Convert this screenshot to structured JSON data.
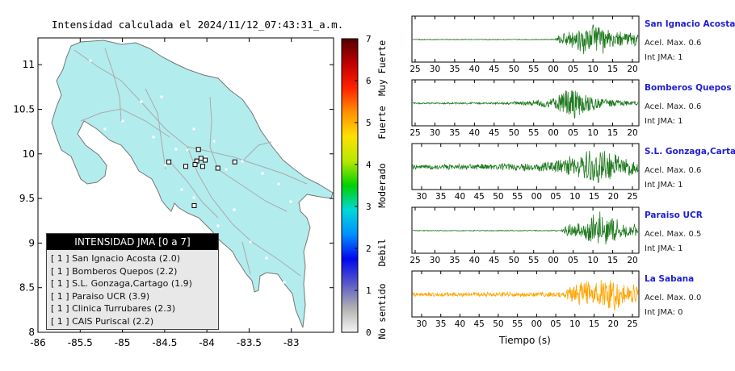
{
  "map": {
    "title": "Intensidad calculada el 2024/11/12_07:43:31_a.m.",
    "colors": {
      "land": "#b3ecec",
      "border": "#777777",
      "roads": "#aaaaaa",
      "station_dots": "#ffffff"
    },
    "legend": {
      "header": "INTENSIDAD JMA [0 a 7]",
      "rows": [
        "[ 1 ]  San Ignacio Acosta (2.0)",
        "[ 1 ]  Bomberos Quepos (2.2)",
        "[ 1 ]  S.L. Gonzaga,Cartago (1.9)",
        "[ 1 ]  Paraiso UCR (3.9)",
        "[ 1 ]  Clinica Turrubares (2.3)",
        "[ 1 ]  CAIS Puriscal (2.2)"
      ]
    }
  },
  "chart_data": [
    {
      "type": "scatter",
      "title": "Intensidad calculada el 2024/11/12_07:43:31_a.m.",
      "xlabel": "",
      "ylabel": "",
      "xlim": [
        -86,
        -82.5
      ],
      "ylim": [
        8,
        11.3
      ],
      "x_ticks": [
        "-86",
        "-85.5",
        "-85",
        "-84.5",
        "-84",
        "-83.5",
        "-83"
      ],
      "y_ticks": [
        "8",
        "8.5",
        "9",
        "9.5",
        "10",
        "10.5",
        "11"
      ],
      "grid": false,
      "series": [
        {
          "marker": "square",
          "points": [
            {
              "x": -84.1,
              "y": 10.05
            },
            {
              "x": -84.07,
              "y": 9.95
            },
            {
              "x": -84.12,
              "y": 9.92
            },
            {
              "x": -84.02,
              "y": 9.93
            },
            {
              "x": -84.45,
              "y": 9.91
            },
            {
              "x": -84.14,
              "y": 9.88
            },
            {
              "x": -84.05,
              "y": 9.86
            },
            {
              "x": -84.25,
              "y": 9.86
            },
            {
              "x": -83.87,
              "y": 9.84
            },
            {
              "x": -83.67,
              "y": 9.91
            },
            {
              "x": -84.15,
              "y": 9.42
            }
          ]
        }
      ]
    },
    {
      "type": "heatmap",
      "title": "",
      "ticks": [
        "0",
        "1",
        "2",
        "3",
        "4",
        "5",
        "6",
        "7"
      ],
      "vmin": 0,
      "vmax": 7,
      "band_labels": [
        "No sentido",
        "Debil",
        "Moderado",
        "Fuerte",
        "Muy Fuerte"
      ],
      "colormap": [
        "#f5f5f5",
        "#b0b0b0",
        "#5858c8",
        "#0008f0",
        "#0090ff",
        "#00d8d8",
        "#00d000",
        "#b8e800",
        "#ffe000",
        "#ff9000",
        "#ff2000",
        "#c00000",
        "#500000"
      ]
    },
    {
      "type": "line",
      "xlabel": "Tiempo (s)",
      "note_colors": {
        "trace": "#1f7a1f",
        "last_trace": "#ffa500",
        "name": "#1f1fd0"
      },
      "panels": [
        {
          "name": "San Ignacio Acosta",
          "acel_label": "Acel. Max. 0.6",
          "int_label": "Int JMA: 1",
          "x_ticks": [
            "25",
            "30",
            "35",
            "40",
            "45",
            "50",
            "55",
            "00",
            "05",
            "10",
            "15",
            "20"
          ],
          "seed": 11,
          "envelope": [
            {
              "t": 0,
              "a": 0.02
            },
            {
              "t": 0.63,
              "a": 0.02
            },
            {
              "t": 0.65,
              "a": 0.35
            },
            {
              "t": 0.72,
              "a": 0.45
            },
            {
              "t": 0.76,
              "a": 0.7
            },
            {
              "t": 0.81,
              "a": 1.0
            },
            {
              "t": 0.86,
              "a": 0.55
            },
            {
              "t": 0.92,
              "a": 0.4
            },
            {
              "t": 1,
              "a": 0.35
            }
          ]
        },
        {
          "name": "Bomberos Quepos",
          "acel_label": "Acel. Max. 0.6",
          "int_label": "Int JMA: 1",
          "x_ticks": [
            "25",
            "30",
            "35",
            "40",
            "45",
            "50",
            "55",
            "00",
            "05",
            "10",
            "15",
            "20"
          ],
          "seed": 23,
          "envelope": [
            {
              "t": 0,
              "a": 0.04
            },
            {
              "t": 0.38,
              "a": 0.05
            },
            {
              "t": 0.55,
              "a": 0.15
            },
            {
              "t": 0.62,
              "a": 0.3
            },
            {
              "t": 0.7,
              "a": 1.0
            },
            {
              "t": 0.76,
              "a": 0.55
            },
            {
              "t": 0.84,
              "a": 0.3
            },
            {
              "t": 0.92,
              "a": 0.15
            },
            {
              "t": 1,
              "a": 0.1
            }
          ]
        },
        {
          "name": "S.L. Gonzaga,Cartago",
          "acel_label": "Acel. Max. 0.6",
          "int_label": "Int JMA: 1",
          "x_ticks": [
            "30",
            "35",
            "40",
            "45",
            "50",
            "55",
            "00",
            "05",
            "10",
            "15",
            "20",
            "25"
          ],
          "seed": 37,
          "envelope": [
            {
              "t": 0,
              "a": 0.12
            },
            {
              "t": 0.3,
              "a": 0.15
            },
            {
              "t": 0.5,
              "a": 0.2
            },
            {
              "t": 0.62,
              "a": 0.3
            },
            {
              "t": 0.72,
              "a": 0.6
            },
            {
              "t": 0.8,
              "a": 1.0
            },
            {
              "t": 0.88,
              "a": 0.7
            },
            {
              "t": 0.94,
              "a": 0.5
            },
            {
              "t": 1,
              "a": 0.3
            }
          ]
        },
        {
          "name": "Paraiso UCR",
          "acel_label": "Acel. Max. 0.5",
          "int_label": "Int JMA: 1",
          "x_ticks": [
            "25",
            "30",
            "35",
            "40",
            "45",
            "50",
            "55",
            "00",
            "05",
            "10",
            "15",
            "20"
          ],
          "seed": 53,
          "envelope": [
            {
              "t": 0,
              "a": 0.02
            },
            {
              "t": 0.66,
              "a": 0.03
            },
            {
              "t": 0.68,
              "a": 0.3
            },
            {
              "t": 0.76,
              "a": 0.5
            },
            {
              "t": 0.84,
              "a": 1.0
            },
            {
              "t": 0.9,
              "a": 0.6
            },
            {
              "t": 0.96,
              "a": 0.35
            },
            {
              "t": 1,
              "a": 0.3
            }
          ]
        },
        {
          "name": "La Sabana",
          "acel_label": "Acel. Max. 0.0",
          "int_label": "Int JMA: 0",
          "x_ticks": [
            "30",
            "35",
            "40",
            "45",
            "50",
            "55",
            "00",
            "05",
            "10",
            "15",
            "20",
            "25"
          ],
          "seed": 71,
          "envelope": [
            {
              "t": 0,
              "a": 0.12
            },
            {
              "t": 0.55,
              "a": 0.13
            },
            {
              "t": 0.68,
              "a": 0.15
            },
            {
              "t": 0.7,
              "a": 0.55
            },
            {
              "t": 0.8,
              "a": 0.75
            },
            {
              "t": 0.87,
              "a": 1.0
            },
            {
              "t": 0.94,
              "a": 0.65
            },
            {
              "t": 1,
              "a": 0.55
            }
          ]
        }
      ]
    }
  ]
}
